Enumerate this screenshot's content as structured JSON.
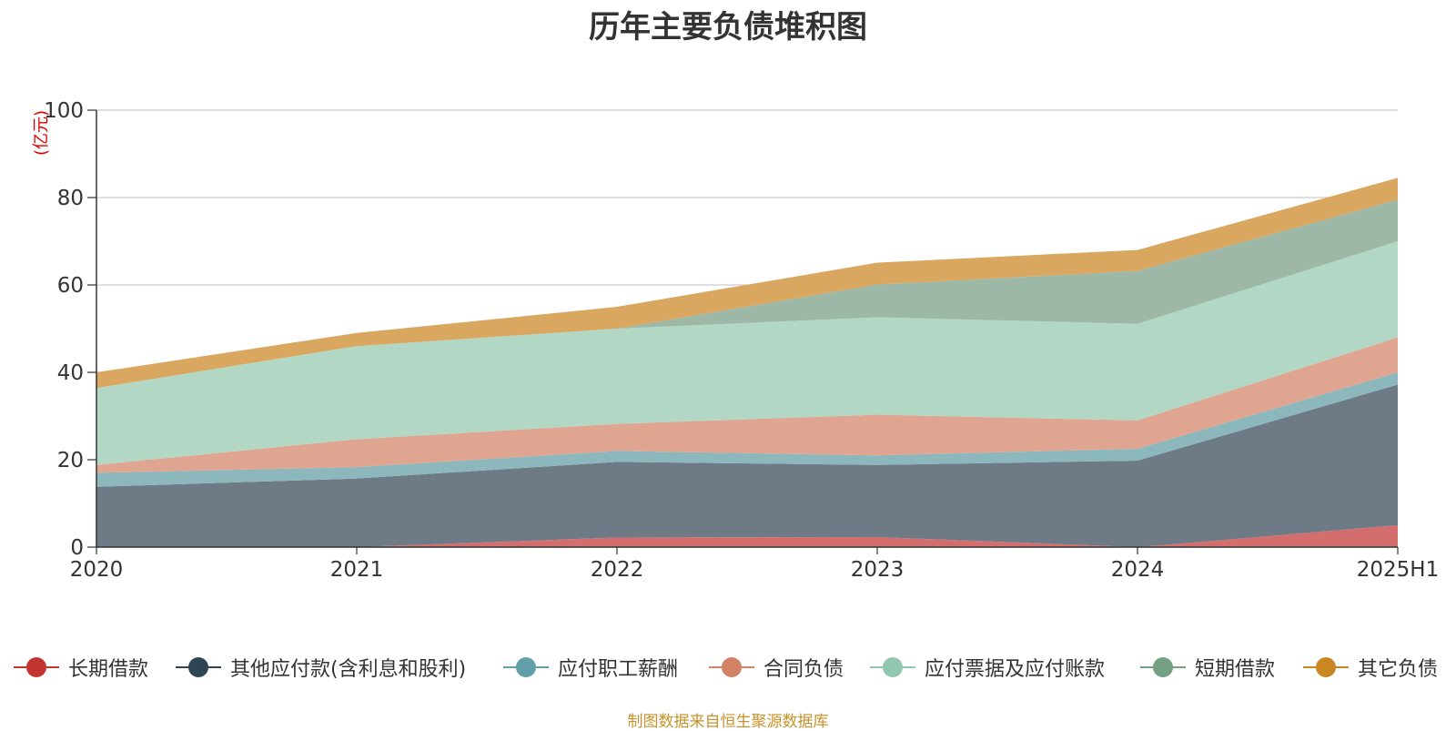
{
  "chart_data": {
    "type": "area",
    "stacked": true,
    "title": "历年主要负债堆积图",
    "unit_label": "(亿元)",
    "categories": [
      "2020",
      "2021",
      "2022",
      "2023",
      "2024",
      "2025H1"
    ],
    "ylim": [
      0,
      100
    ],
    "yticks": [
      0,
      20,
      40,
      60,
      80,
      100
    ],
    "grid": true,
    "legend_position": "bottom",
    "series": [
      {
        "name": "长期借款",
        "color": "#c23531",
        "fill": "#d46e6e",
        "values": [
          0,
          0,
          2.2,
          2.3,
          0,
          5
        ]
      },
      {
        "name": "其他应付款(含利息和股利)",
        "color": "#2f4554",
        "fill": "#6e7b86",
        "values": [
          13.8,
          15.7,
          17.3,
          16.5,
          19.8,
          32.2
        ]
      },
      {
        "name": "应付职工薪酬",
        "color": "#61a0a8",
        "fill": "#8cb8bd",
        "values": [
          3.2,
          2.6,
          2.5,
          2.2,
          2.7,
          2.8
        ]
      },
      {
        "name": "合同负债",
        "color": "#d48265",
        "fill": "#e0a591",
        "values": [
          1.8,
          6.4,
          6.2,
          9.3,
          6.5,
          8
        ]
      },
      {
        "name": "应付票据及应付账款",
        "color": "#91c7ae",
        "fill": "#b2d8c5",
        "values": [
          17.6,
          21.3,
          21.8,
          22.3,
          22.1,
          22
        ]
      },
      {
        "name": "短期借款",
        "color": "#749f83",
        "fill": "#9db8a6",
        "values": [
          0,
          0,
          0,
          7.5,
          12.1,
          9.5
        ]
      },
      {
        "name": "其它负债",
        "color": "#ca8622",
        "fill": "#d9a75f",
        "values": [
          3.6,
          3,
          5,
          5,
          4.8,
          5
        ]
      }
    ]
  },
  "source_note": "制图数据来自恒生聚源数据库"
}
